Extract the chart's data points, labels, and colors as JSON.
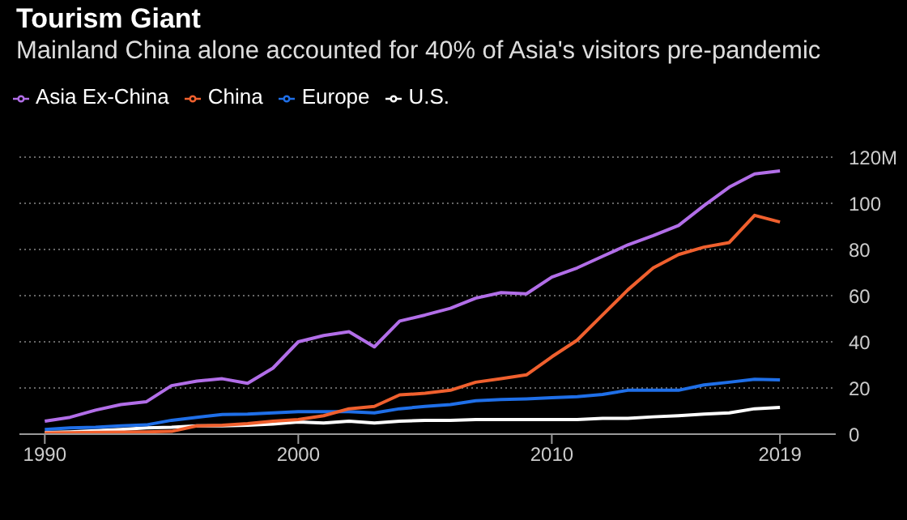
{
  "chart_data": {
    "type": "line",
    "title": "Tourism Giant",
    "subtitle": "Mainland China alone accounted for 40% of Asia's visitors pre-pandemic",
    "x": [
      1990,
      1991,
      1992,
      1993,
      1994,
      1995,
      1996,
      1997,
      1998,
      1999,
      2000,
      2001,
      2002,
      2003,
      2004,
      2005,
      2006,
      2007,
      2008,
      2009,
      2010,
      2011,
      2012,
      2013,
      2014,
      2015,
      2016,
      2017,
      2018,
      2019
    ],
    "series": [
      {
        "name": "U.S.",
        "color": "#ffffff",
        "values": [
          0.7,
          1,
          1.5,
          2,
          2.7,
          3,
          3.6,
          3.6,
          3.9,
          4.4,
          5.3,
          4.8,
          5.6,
          4.8,
          5.6,
          6,
          6,
          6.3,
          6.3,
          6.3,
          6.3,
          6.3,
          6.8,
          6.8,
          7.5,
          8,
          8.7,
          9.2,
          11,
          11.6
        ]
      },
      {
        "name": "Europe",
        "color": "#1f6fe8",
        "values": [
          2,
          2.7,
          3,
          3.6,
          4,
          6,
          7.3,
          8.5,
          8.7,
          9.2,
          9.7,
          9.7,
          9.7,
          9.2,
          11,
          12,
          12.8,
          14.5,
          15,
          15.3,
          15.8,
          16.2,
          17.2,
          19,
          19,
          19,
          21.3,
          22.5,
          23.8,
          23.5
        ]
      },
      {
        "name": "China",
        "color": "#f0602e",
        "values": [
          0.5,
          0.6,
          0.8,
          0.9,
          1,
          1.2,
          3.6,
          3.9,
          4.6,
          5.6,
          6.3,
          8,
          11,
          12,
          17,
          17.7,
          19,
          22.5,
          24,
          25.7,
          33.5,
          40.7,
          51.6,
          62.5,
          72,
          77.8,
          81,
          83,
          94.8,
          91.9
        ]
      },
      {
        "name": "Asia Ex-China",
        "color": "#b26ee8",
        "values": [
          5.6,
          7.3,
          10.4,
          12.8,
          14,
          21,
          23,
          24,
          22,
          28.6,
          40,
          42.7,
          44.4,
          37.8,
          49,
          51.6,
          54.5,
          58.9,
          61.3,
          60.8,
          68,
          72,
          77,
          82,
          86,
          90.4,
          99,
          107,
          112.7,
          114
        ]
      }
    ],
    "xlim": [
      1989,
      2021.2
    ],
    "xticks": [
      1990,
      2000,
      2010,
      2019
    ],
    "ylim": [
      0,
      120
    ],
    "yticks": [
      0,
      20,
      40,
      60,
      80,
      100,
      {
        "value": 120,
        "label": "120M"
      }
    ],
    "grid": "y",
    "legend": "top left",
    "marker": "none",
    "line_style": "solid"
  }
}
